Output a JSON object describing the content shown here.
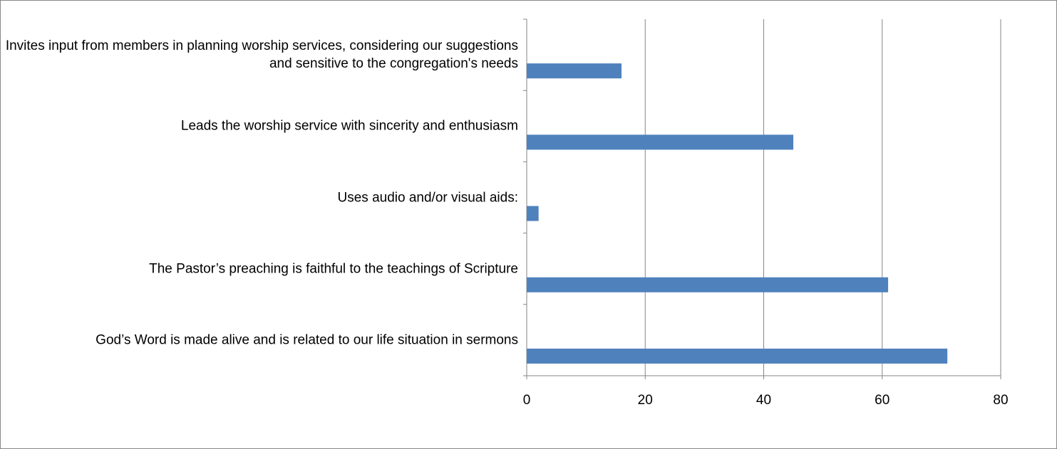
{
  "chart_data": {
    "type": "bar",
    "orientation": "horizontal",
    "categories": [
      "Invites input from members in planning worship services, considering our  suggestions and sensitive to the  congregation's needs",
      "Leads the worship service with sincerity and  enthusiasm",
      "Uses audio and/or visual aids:",
      "The Pastor’s preaching is faithful to the   teachings of Scripture",
      "God’s Word is made alive and is related to our    life situation in sermons"
    ],
    "values": [
      16,
      45,
      2,
      61,
      71
    ],
    "color": "#4f81bd",
    "xlim": [
      0,
      80
    ],
    "xticks": [
      0,
      20,
      40,
      60,
      80
    ],
    "grid": true
  }
}
